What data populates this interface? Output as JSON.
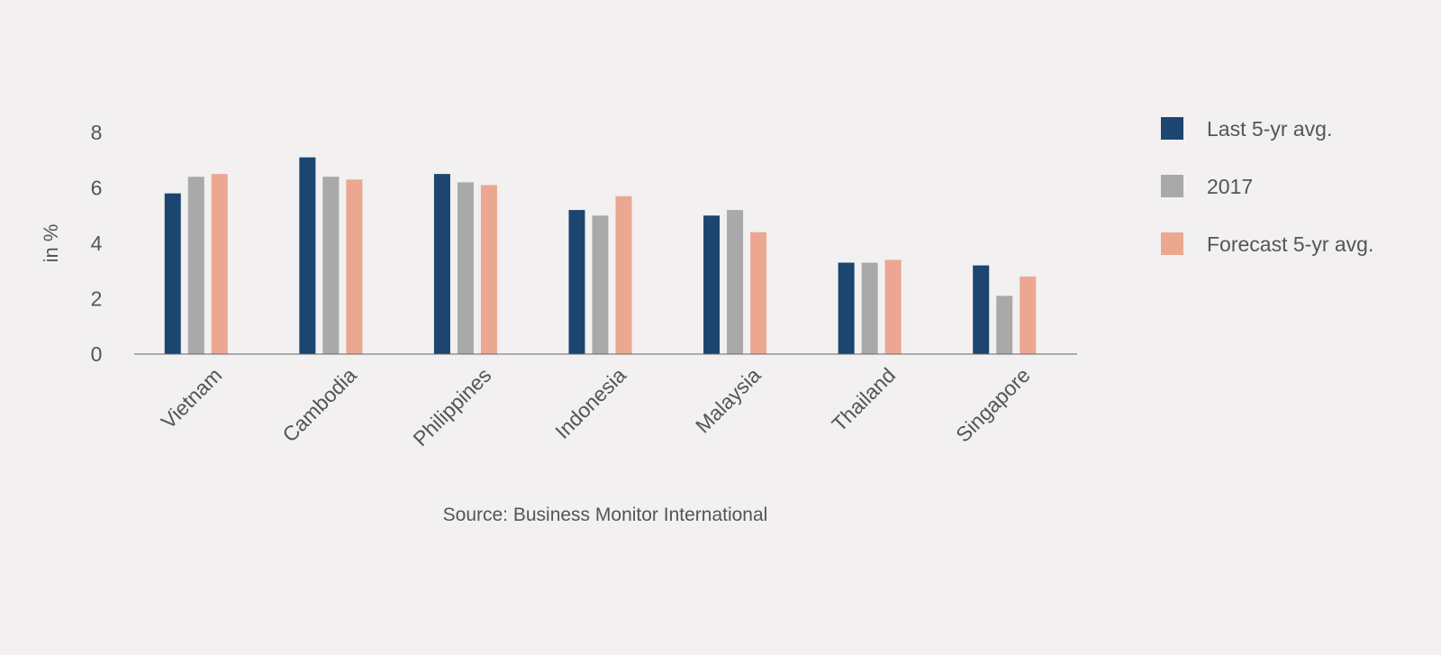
{
  "chart_data": {
    "type": "bar",
    "categories": [
      "Vietnam",
      "Cambodia",
      "Philippines",
      "Indonesia",
      "Malaysia",
      "Thailand",
      "Singapore"
    ],
    "series": [
      {
        "name": "Last 5-yr avg.",
        "color": "#1c4570",
        "values": [
          5.8,
          7.1,
          6.5,
          5.2,
          5.0,
          3.3,
          3.2
        ]
      },
      {
        "name": "2017",
        "color": "#a9a9a9",
        "values": [
          6.4,
          6.4,
          6.2,
          5.0,
          5.2,
          3.3,
          2.1
        ]
      },
      {
        "name": "Forecast 5-yr avg.",
        "color": "#eca791",
        "values": [
          6.5,
          6.3,
          6.1,
          5.7,
          4.4,
          3.4,
          2.8
        ]
      }
    ],
    "ylabel": "in %",
    "yticks": [
      0,
      2,
      4,
      6,
      8
    ],
    "ylim": [
      0,
      8
    ],
    "grid": false,
    "legend_position": "right"
  },
  "source": "Source: Business Monitor International"
}
